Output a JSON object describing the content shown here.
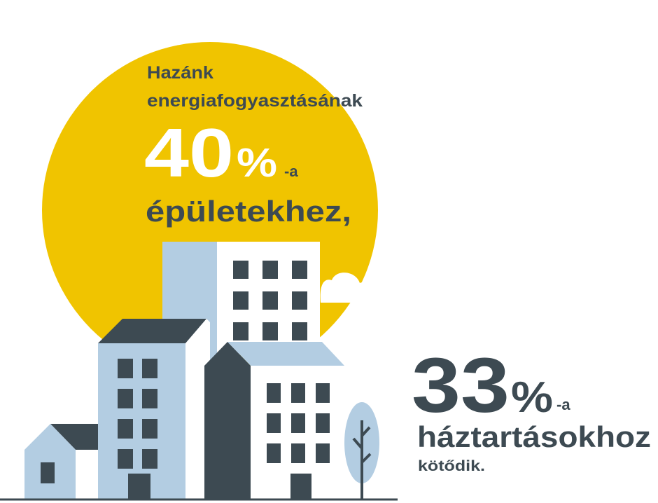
{
  "intro": {
    "line1": "Hazánk",
    "line2": "energiafogyasztásának"
  },
  "buildings_stat": {
    "number": "40",
    "unit": "%",
    "suffix": "-a",
    "text": "épületekhez,"
  },
  "households_stat": {
    "number": "33",
    "unit": "%",
    "suffix": "-a",
    "text": "háztartásokhoz",
    "note": "kötődik."
  }
}
